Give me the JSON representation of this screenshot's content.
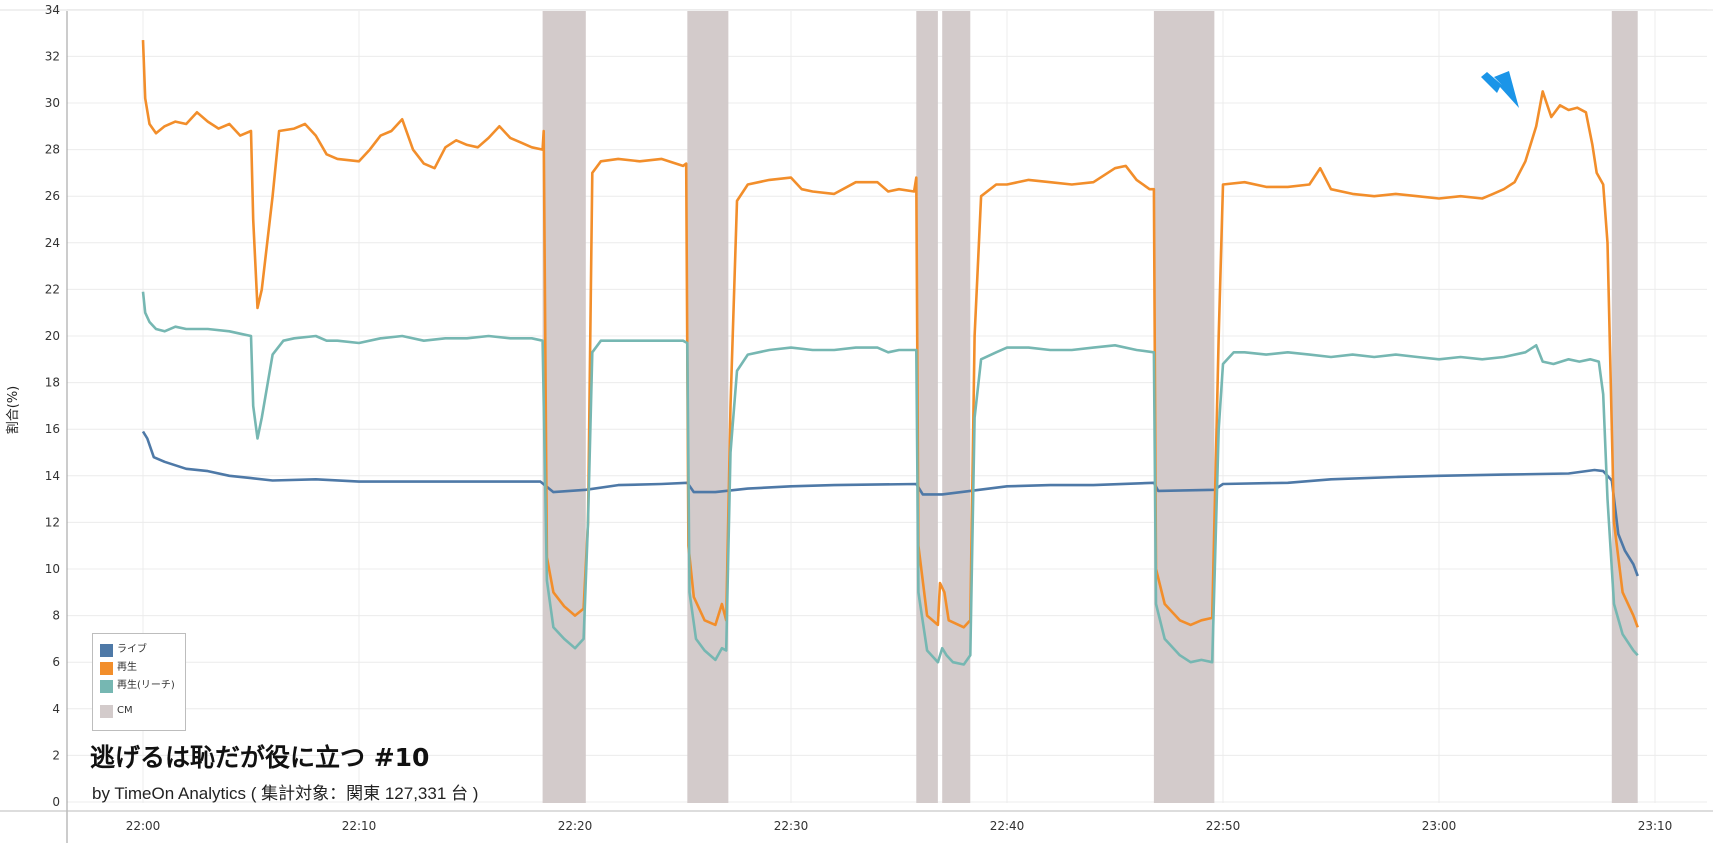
{
  "chart_data": {
    "type": "line",
    "title": "逃げるは恥だが役に立つ #10",
    "subtitle": "by TimeOn Analytics ( 集計対象：関東 127,331 台 )",
    "ylabel": "割合(%)",
    "xlabel": "",
    "ylim": [
      0,
      34
    ],
    "yticks": [
      0,
      2,
      4,
      6,
      8,
      10,
      12,
      14,
      16,
      18,
      20,
      22,
      24,
      26,
      28,
      30,
      32,
      34
    ],
    "x_range_minutes": [
      -4,
      73
    ],
    "x_ticks": [
      {
        "label": "22:00",
        "minute": 0
      },
      {
        "label": "22:10",
        "minute": 10
      },
      {
        "label": "22:20",
        "minute": 20
      },
      {
        "label": "22:30",
        "minute": 30
      },
      {
        "label": "22:40",
        "minute": 40
      },
      {
        "label": "22:50",
        "minute": 50
      },
      {
        "label": "23:00",
        "minute": 60
      },
      {
        "label": "23:10",
        "minute": 70
      }
    ],
    "grid": true,
    "legend_position": "bottom-left",
    "cm_label": "CM",
    "cm_color": "#d3cbcb",
    "cm_intervals": [
      [
        18.5,
        20.5
      ],
      [
        25.2,
        27.1
      ],
      [
        35.8,
        36.8
      ],
      [
        37.0,
        38.3
      ],
      [
        46.8,
        49.6
      ],
      [
        68.0,
        69.2
      ]
    ],
    "series": [
      {
        "name": "ライブ",
        "color": "#4e79a7",
        "points": [
          [
            0,
            15.9
          ],
          [
            0.2,
            15.6
          ],
          [
            0.5,
            14.8
          ],
          [
            1,
            14.6
          ],
          [
            2,
            14.3
          ],
          [
            3,
            14.2
          ],
          [
            4,
            14.0
          ],
          [
            5,
            13.9
          ],
          [
            6,
            13.8
          ],
          [
            8,
            13.85
          ],
          [
            10,
            13.75
          ],
          [
            13,
            13.75
          ],
          [
            16,
            13.75
          ],
          [
            18.4,
            13.75
          ],
          [
            18.6,
            13.6
          ],
          [
            19,
            13.3
          ],
          [
            20.5,
            13.4
          ],
          [
            22,
            13.6
          ],
          [
            24,
            13.65
          ],
          [
            25.2,
            13.7
          ],
          [
            25.5,
            13.3
          ],
          [
            26.5,
            13.3
          ],
          [
            28,
            13.45
          ],
          [
            30,
            13.55
          ],
          [
            32,
            13.6
          ],
          [
            35.8,
            13.65
          ],
          [
            36.1,
            13.2
          ],
          [
            37,
            13.2
          ],
          [
            38.3,
            13.35
          ],
          [
            40,
            13.55
          ],
          [
            42,
            13.6
          ],
          [
            44,
            13.6
          ],
          [
            46.8,
            13.7
          ],
          [
            47,
            13.35
          ],
          [
            49.6,
            13.4
          ],
          [
            50,
            13.65
          ],
          [
            53,
            13.7
          ],
          [
            55,
            13.85
          ],
          [
            58,
            13.95
          ],
          [
            60,
            14.0
          ],
          [
            63,
            14.05
          ],
          [
            66,
            14.1
          ],
          [
            67.2,
            14.25
          ],
          [
            67.6,
            14.2
          ],
          [
            68,
            13.8
          ],
          [
            68.3,
            11.5
          ],
          [
            68.6,
            10.8
          ],
          [
            69,
            10.2
          ],
          [
            69.2,
            9.7
          ]
        ]
      },
      {
        "name": "再生",
        "color": "#f28e2b",
        "points": [
          [
            0,
            32.7
          ],
          [
            0.1,
            30.2
          ],
          [
            0.3,
            29.1
          ],
          [
            0.6,
            28.7
          ],
          [
            1,
            29.0
          ],
          [
            1.5,
            29.2
          ],
          [
            2,
            29.1
          ],
          [
            2.5,
            29.6
          ],
          [
            3,
            29.2
          ],
          [
            3.5,
            28.9
          ],
          [
            4,
            29.1
          ],
          [
            4.5,
            28.6
          ],
          [
            5,
            28.8
          ],
          [
            5.1,
            25.0
          ],
          [
            5.3,
            21.2
          ],
          [
            5.5,
            22.0
          ],
          [
            6,
            26.0
          ],
          [
            6.3,
            28.8
          ],
          [
            7,
            28.9
          ],
          [
            7.5,
            29.1
          ],
          [
            8,
            28.6
          ],
          [
            8.5,
            27.8
          ],
          [
            9,
            27.6
          ],
          [
            10,
            27.5
          ],
          [
            10.5,
            28.0
          ],
          [
            11,
            28.6
          ],
          [
            11.5,
            28.8
          ],
          [
            12,
            29.3
          ],
          [
            12.5,
            28.0
          ],
          [
            13,
            27.4
          ],
          [
            13.5,
            27.2
          ],
          [
            14,
            28.1
          ],
          [
            14.5,
            28.4
          ],
          [
            15,
            28.2
          ],
          [
            15.5,
            28.1
          ],
          [
            16,
            28.5
          ],
          [
            16.5,
            29.0
          ],
          [
            17,
            28.5
          ],
          [
            17.5,
            28.3
          ],
          [
            18,
            28.1
          ],
          [
            18.5,
            28.0
          ],
          [
            18.55,
            28.8
          ],
          [
            18.7,
            10.5
          ],
          [
            19,
            9.0
          ],
          [
            19.5,
            8.4
          ],
          [
            20,
            8.0
          ],
          [
            20.4,
            8.3
          ],
          [
            20.6,
            12.0
          ],
          [
            20.8,
            27.0
          ],
          [
            21.2,
            27.5
          ],
          [
            22,
            27.6
          ],
          [
            23,
            27.5
          ],
          [
            24,
            27.6
          ],
          [
            25,
            27.3
          ],
          [
            25.15,
            27.4
          ],
          [
            25.25,
            11.0
          ],
          [
            25.5,
            8.8
          ],
          [
            26,
            7.8
          ],
          [
            26.5,
            7.6
          ],
          [
            26.8,
            8.5
          ],
          [
            27.0,
            7.8
          ],
          [
            27.2,
            17.0
          ],
          [
            27.5,
            25.8
          ],
          [
            28,
            26.5
          ],
          [
            29,
            26.7
          ],
          [
            30,
            26.8
          ],
          [
            30.5,
            26.3
          ],
          [
            31,
            26.2
          ],
          [
            32,
            26.1
          ],
          [
            33,
            26.6
          ],
          [
            34,
            26.6
          ],
          [
            34.5,
            26.2
          ],
          [
            35,
            26.3
          ],
          [
            35.7,
            26.2
          ],
          [
            35.8,
            26.8
          ],
          [
            35.9,
            11.0
          ],
          [
            36.3,
            8.0
          ],
          [
            36.8,
            7.6
          ],
          [
            36.9,
            9.4
          ],
          [
            37.1,
            9.0
          ],
          [
            37.3,
            7.8
          ],
          [
            38,
            7.5
          ],
          [
            38.3,
            7.8
          ],
          [
            38.5,
            20.0
          ],
          [
            38.8,
            26.0
          ],
          [
            39.5,
            26.5
          ],
          [
            40,
            26.5
          ],
          [
            41,
            26.7
          ],
          [
            42,
            26.6
          ],
          [
            43,
            26.5
          ],
          [
            44,
            26.6
          ],
          [
            45,
            27.2
          ],
          [
            45.5,
            27.3
          ],
          [
            46,
            26.7
          ],
          [
            46.6,
            26.3
          ],
          [
            46.8,
            26.3
          ],
          [
            46.9,
            10.0
          ],
          [
            47.3,
            8.5
          ],
          [
            48,
            7.8
          ],
          [
            48.5,
            7.6
          ],
          [
            49,
            7.8
          ],
          [
            49.5,
            7.9
          ],
          [
            49.8,
            20.0
          ],
          [
            50,
            26.5
          ],
          [
            51,
            26.6
          ],
          [
            52,
            26.4
          ],
          [
            53,
            26.4
          ],
          [
            54,
            26.5
          ],
          [
            54.5,
            27.2
          ],
          [
            55,
            26.3
          ],
          [
            56,
            26.1
          ],
          [
            57,
            26.0
          ],
          [
            58,
            26.1
          ],
          [
            59,
            26.0
          ],
          [
            60,
            25.9
          ],
          [
            61,
            26.0
          ],
          [
            62,
            25.9
          ],
          [
            62.5,
            26.1
          ],
          [
            63,
            26.3
          ],
          [
            63.5,
            26.6
          ],
          [
            64,
            27.5
          ],
          [
            64.5,
            29.0
          ],
          [
            64.8,
            30.5
          ],
          [
            65.2,
            29.4
          ],
          [
            65.6,
            29.9
          ],
          [
            66,
            29.7
          ],
          [
            66.4,
            29.8
          ],
          [
            66.8,
            29.6
          ],
          [
            67.1,
            28.2
          ],
          [
            67.3,
            27.0
          ],
          [
            67.6,
            26.5
          ],
          [
            67.8,
            24.0
          ],
          [
            68.1,
            12.0
          ],
          [
            68.5,
            9.0
          ],
          [
            69,
            8.0
          ],
          [
            69.2,
            7.5
          ]
        ]
      },
      {
        "name": "再生(リーチ)",
        "color": "#76b7b2",
        "points": [
          [
            0,
            21.9
          ],
          [
            0.1,
            21.0
          ],
          [
            0.3,
            20.6
          ],
          [
            0.6,
            20.3
          ],
          [
            1,
            20.2
          ],
          [
            1.5,
            20.4
          ],
          [
            2,
            20.3
          ],
          [
            3,
            20.3
          ],
          [
            4,
            20.2
          ],
          [
            4.5,
            20.1
          ],
          [
            5,
            20.0
          ],
          [
            5.1,
            17.0
          ],
          [
            5.3,
            15.6
          ],
          [
            5.5,
            16.5
          ],
          [
            6,
            19.2
          ],
          [
            6.5,
            19.8
          ],
          [
            7,
            19.9
          ],
          [
            8,
            20.0
          ],
          [
            8.5,
            19.8
          ],
          [
            9,
            19.8
          ],
          [
            10,
            19.7
          ],
          [
            11,
            19.9
          ],
          [
            12,
            20.0
          ],
          [
            13,
            19.8
          ],
          [
            14,
            19.9
          ],
          [
            15,
            19.9
          ],
          [
            16,
            20.0
          ],
          [
            17,
            19.9
          ],
          [
            18,
            19.9
          ],
          [
            18.5,
            19.8
          ],
          [
            18.7,
            9.5
          ],
          [
            19,
            7.5
          ],
          [
            19.5,
            7.0
          ],
          [
            20,
            6.6
          ],
          [
            20.4,
            7.0
          ],
          [
            20.6,
            12.0
          ],
          [
            20.8,
            19.3
          ],
          [
            21.2,
            19.8
          ],
          [
            22,
            19.8
          ],
          [
            23,
            19.8
          ],
          [
            24,
            19.8
          ],
          [
            25,
            19.8
          ],
          [
            25.2,
            19.7
          ],
          [
            25.3,
            9.0
          ],
          [
            25.6,
            7.0
          ],
          [
            26,
            6.5
          ],
          [
            26.5,
            6.1
          ],
          [
            26.8,
            6.6
          ],
          [
            27.0,
            6.5
          ],
          [
            27.2,
            15.0
          ],
          [
            27.5,
            18.5
          ],
          [
            28,
            19.2
          ],
          [
            29,
            19.4
          ],
          [
            30,
            19.5
          ],
          [
            31,
            19.4
          ],
          [
            32,
            19.4
          ],
          [
            33,
            19.5
          ],
          [
            34,
            19.5
          ],
          [
            34.5,
            19.3
          ],
          [
            35,
            19.4
          ],
          [
            35.8,
            19.4
          ],
          [
            35.9,
            9.0
          ],
          [
            36.3,
            6.5
          ],
          [
            36.8,
            6.0
          ],
          [
            37.0,
            6.6
          ],
          [
            37.2,
            6.3
          ],
          [
            37.5,
            6.0
          ],
          [
            38,
            5.9
          ],
          [
            38.3,
            6.3
          ],
          [
            38.5,
            16.5
          ],
          [
            38.8,
            19.0
          ],
          [
            39.5,
            19.3
          ],
          [
            40,
            19.5
          ],
          [
            41,
            19.5
          ],
          [
            42,
            19.4
          ],
          [
            43,
            19.4
          ],
          [
            44,
            19.5
          ],
          [
            45,
            19.6
          ],
          [
            46,
            19.4
          ],
          [
            46.8,
            19.3
          ],
          [
            46.9,
            8.5
          ],
          [
            47.3,
            7.0
          ],
          [
            48,
            6.3
          ],
          [
            48.5,
            6.0
          ],
          [
            49,
            6.1
          ],
          [
            49.5,
            6.0
          ],
          [
            49.8,
            16.0
          ],
          [
            50,
            18.8
          ],
          [
            50.5,
            19.3
          ],
          [
            51,
            19.3
          ],
          [
            52,
            19.2
          ],
          [
            53,
            19.3
          ],
          [
            54,
            19.2
          ],
          [
            55,
            19.1
          ],
          [
            56,
            19.2
          ],
          [
            57,
            19.1
          ],
          [
            58,
            19.2
          ],
          [
            59,
            19.1
          ],
          [
            60,
            19.0
          ],
          [
            61,
            19.1
          ],
          [
            62,
            19.0
          ],
          [
            63,
            19.1
          ],
          [
            64,
            19.3
          ],
          [
            64.5,
            19.6
          ],
          [
            64.8,
            18.9
          ],
          [
            65.3,
            18.8
          ],
          [
            66,
            19.0
          ],
          [
            66.5,
            18.9
          ],
          [
            67,
            19.0
          ],
          [
            67.4,
            18.9
          ],
          [
            67.6,
            17.5
          ],
          [
            67.8,
            13.0
          ],
          [
            68.1,
            8.5
          ],
          [
            68.5,
            7.2
          ],
          [
            69,
            6.5
          ],
          [
            69.2,
            6.3
          ]
        ]
      }
    ]
  }
}
